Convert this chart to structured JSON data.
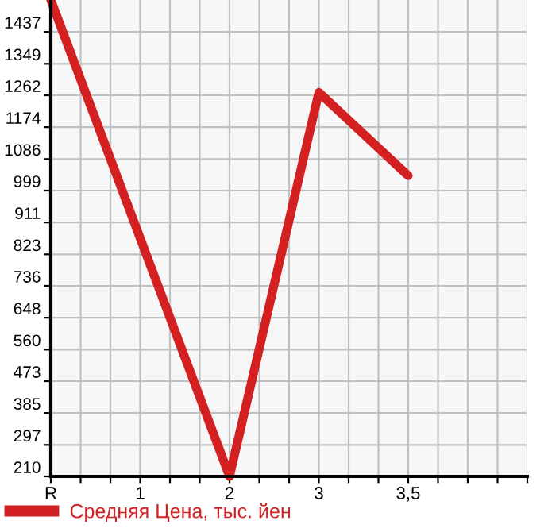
{
  "chart_data": {
    "type": "line",
    "categories": [
      "R",
      null,
      null,
      "1",
      null,
      null,
      "2",
      null,
      null,
      "3",
      null,
      null,
      "3,5",
      null,
      null,
      null
    ],
    "series": [
      {
        "name": "Средняя Цена, тыс. йен",
        "color": "#d42020",
        "values": [
          1525,
          null,
          null,
          null,
          null,
          null,
          210,
          null,
          null,
          1270,
          null,
          null,
          1040,
          null,
          null,
          null
        ]
      }
    ],
    "ylim": [
      210,
      1525
    ],
    "yticks": [
      210,
      297,
      385,
      473,
      560,
      648,
      736,
      823,
      911,
      999,
      1086,
      1174,
      1262,
      1349,
      1437
    ],
    "grid": true,
    "legend": "bottom",
    "marker": "none",
    "line_style": "solid"
  }
}
